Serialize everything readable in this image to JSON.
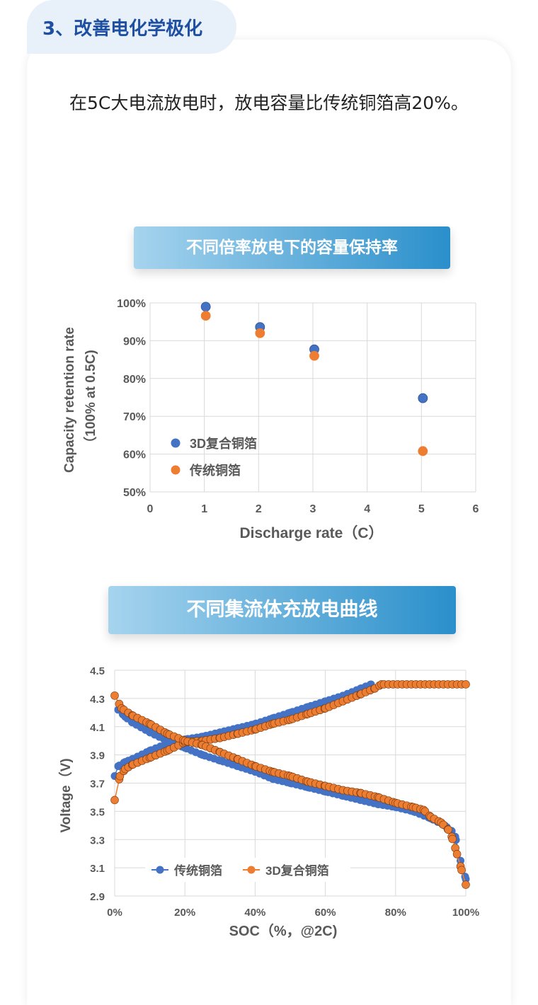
{
  "section_title": "3、改善电化学极化",
  "description": "在5C大电流放电时，放电容量比传统铜箔高20%。",
  "colors": {
    "blue": "#4472c4",
    "orange": "#ed7d31",
    "title_blue": "#1f4fa3"
  },
  "chart_data": [
    {
      "type": "scatter",
      "title": "不同倍率放电下的容量保持率",
      "xlabel": "Discharge rate（C）",
      "ylabel_lines": [
        "Capacity retention rate",
        "（100% at 0.5C)"
      ],
      "xlim": [
        0,
        6
      ],
      "ylim": [
        50,
        100
      ],
      "xticks": [
        "0",
        "1",
        "2",
        "3",
        "4",
        "5",
        "6"
      ],
      "yticks": [
        "50%",
        "60%",
        "70%",
        "80%",
        "90%",
        "100%"
      ],
      "grid": true,
      "legend": "bottom-left",
      "series": [
        {
          "name": "3D复合铜箔",
          "color": "#4472c4",
          "x": [
            1,
            2,
            3,
            5
          ],
          "y": [
            99,
            93.6,
            87.7,
            74.8
          ]
        },
        {
          "name": "传统铜箔",
          "color": "#ed7d31",
          "x": [
            1,
            2,
            3,
            5
          ],
          "y": [
            96.6,
            92,
            86,
            60.8
          ]
        }
      ]
    },
    {
      "type": "line",
      "title": "不同集流体充放电曲线",
      "xlabel": "SOC（%，@2C)",
      "ylabel": "Voltage（V)",
      "xlim": [
        0,
        100
      ],
      "ylim": [
        2.9,
        4.5
      ],
      "xticks": [
        "0%",
        "20%",
        "40%",
        "60%",
        "80%",
        "100%"
      ],
      "yticks": [
        "2.9",
        "3.1",
        "3.3",
        "3.5",
        "3.7",
        "3.9",
        "4.1",
        "4.3",
        "4.5"
      ],
      "grid": true,
      "legend": "bottom-center",
      "series": [
        {
          "name": "传统铜箔",
          "color": "#4472c4",
          "curves": [
            [
              [
                0,
                3.75
              ],
              [
                1,
                3.82
              ],
              [
                3,
                3.85
              ],
              [
                5,
                3.87
              ],
              [
                10,
                3.93
              ],
              [
                15,
                3.98
              ],
              [
                20,
                4.01
              ],
              [
                25,
                4.03
              ],
              [
                30,
                4.06
              ],
              [
                35,
                4.09
              ],
              [
                40,
                4.12
              ],
              [
                45,
                4.16
              ],
              [
                50,
                4.2
              ],
              [
                55,
                4.24
              ],
              [
                60,
                4.28
              ],
              [
                65,
                4.32
              ],
              [
                70,
                4.37
              ],
              [
                73,
                4.4
              ]
            ],
            [
              [
                1,
                4.22
              ],
              [
                3,
                4.17
              ],
              [
                5,
                4.13
              ],
              [
                10,
                4.06
              ],
              [
                15,
                4.0
              ],
              [
                20,
                3.95
              ],
              [
                25,
                3.9
              ],
              [
                30,
                3.86
              ],
              [
                35,
                3.82
              ],
              [
                40,
                3.78
              ],
              [
                45,
                3.73
              ],
              [
                50,
                3.7
              ],
              [
                55,
                3.67
              ],
              [
                60,
                3.64
              ],
              [
                65,
                3.61
              ],
              [
                70,
                3.58
              ],
              [
                75,
                3.55
              ],
              [
                80,
                3.53
              ],
              [
                85,
                3.5
              ],
              [
                90,
                3.45
              ],
              [
                94,
                3.4
              ],
              [
                96,
                3.36
              ],
              [
                97,
                3.32
              ],
              [
                98.5,
                3.15
              ],
              [
                100,
                3.02
              ]
            ]
          ]
        },
        {
          "name": "3D复合铜箔",
          "color": "#ed7d31",
          "curves": [
            [
              [
                0,
                3.58
              ],
              [
                1.5,
                3.75
              ],
              [
                3,
                3.8
              ],
              [
                5,
                3.83
              ],
              [
                10,
                3.88
              ],
              [
                15,
                3.93
              ],
              [
                20,
                3.99
              ],
              [
                25,
                4.0
              ],
              [
                30,
                4.02
              ],
              [
                35,
                4.05
              ],
              [
                40,
                4.08
              ],
              [
                45,
                4.12
              ],
              [
                50,
                4.15
              ],
              [
                55,
                4.19
              ],
              [
                60,
                4.23
              ],
              [
                65,
                4.28
              ],
              [
                70,
                4.33
              ],
              [
                74,
                4.37
              ],
              [
                76,
                4.4
              ],
              [
                100,
                4.4
              ]
            ],
            [
              [
                0,
                4.32
              ],
              [
                2,
                4.23
              ],
              [
                5,
                4.18
              ],
              [
                10,
                4.12
              ],
              [
                15,
                4.05
              ],
              [
                20,
                4.0
              ],
              [
                25,
                3.97
              ],
              [
                30,
                3.92
              ],
              [
                35,
                3.87
              ],
              [
                40,
                3.82
              ],
              [
                45,
                3.78
              ],
              [
                50,
                3.75
              ],
              [
                55,
                3.71
              ],
              [
                60,
                3.68
              ],
              [
                65,
                3.65
              ],
              [
                70,
                3.63
              ],
              [
                75,
                3.6
              ],
              [
                80,
                3.56
              ],
              [
                85,
                3.53
              ],
              [
                88,
                3.51
              ],
              [
                90,
                3.46
              ],
              [
                93,
                3.42
              ],
              [
                95,
                3.37
              ],
              [
                96,
                3.32
              ],
              [
                97,
                3.24
              ],
              [
                98.5,
                3.11
              ],
              [
                100,
                2.98
              ]
            ]
          ]
        }
      ]
    }
  ]
}
